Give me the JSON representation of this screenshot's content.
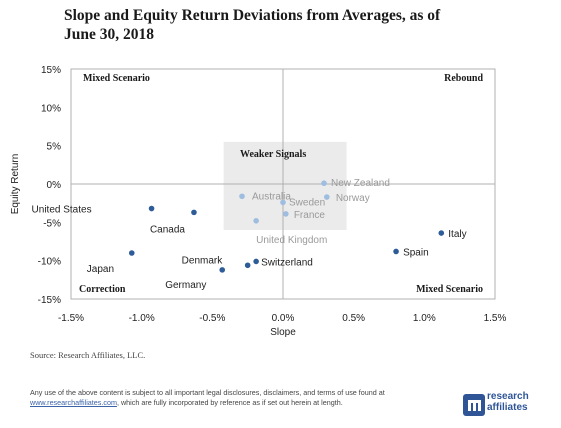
{
  "title_line1": "Slope and Equity Return Deviations from Averages, as of",
  "title_line2": "June 30, 2018",
  "source": "Source: Research Affiliates, LLC.",
  "disclaimer_line1": "Any use of the above content is subject to all important legal disclosures, disclaimers, and terms of use found at",
  "disclaimer_link": "www.researchaffiliates.com",
  "disclaimer_line2_rest": ", which are fully incorporated by reference as if set out herein at length.",
  "logo_line1": "research",
  "logo_line2": "affiliates",
  "colors": {
    "dark_dot": "#2e5c99",
    "light_dot": "#9fbde0",
    "weak_box": "#ebebeb",
    "axis": "#b0b0b0"
  },
  "chart_data": {
    "type": "scatter",
    "title": "Slope and Equity Return Deviations from Averages, as of June 30, 2018",
    "xlabel": "Slope",
    "ylabel": "Equity Return",
    "xlim": [
      -1.5,
      1.5
    ],
    "ylim": [
      -15,
      15
    ],
    "xticks": [
      "-1.5%",
      "-1.0%",
      "-0.5%",
      "0.0%",
      "0.5%",
      "1.0%",
      "1.5%"
    ],
    "yticks": [
      "15%",
      "10%",
      "5%",
      "0%",
      "-5%",
      "-10%",
      "-15%"
    ],
    "quadrant_labels": [
      "Mixed Scenario",
      "Rebound",
      "Correction",
      "Mixed Scenario"
    ],
    "weak_region_label": "Weaker Signals",
    "weak_region": {
      "x": [
        -0.42,
        0.45
      ],
      "y": [
        -6,
        5.5
      ]
    },
    "points": [
      {
        "label": "United States",
        "x": -0.93,
        "y": -3.2,
        "weak": false
      },
      {
        "label": "Canada",
        "x": -0.63,
        "y": -3.7,
        "weak": false
      },
      {
        "label": "Japan",
        "x": -1.07,
        "y": -9.0,
        "weak": false
      },
      {
        "label": "Germany",
        "x": -0.43,
        "y": -11.2,
        "weak": false
      },
      {
        "label": "Denmark",
        "x": -0.25,
        "y": -10.6,
        "weak": false
      },
      {
        "label": "Switzerland",
        "x": -0.19,
        "y": -10.1,
        "weak": false
      },
      {
        "label": "Spain",
        "x": 0.8,
        "y": -8.8,
        "weak": false
      },
      {
        "label": "Italy",
        "x": 1.12,
        "y": -6.4,
        "weak": false
      },
      {
        "label": "Australia",
        "x": -0.29,
        "y": -1.6,
        "weak": true
      },
      {
        "label": "Sweden",
        "x": 0.0,
        "y": -2.4,
        "weak": true
      },
      {
        "label": "New Zealand",
        "x": 0.29,
        "y": 0.1,
        "weak": true
      },
      {
        "label": "Norway",
        "x": 0.31,
        "y": -1.7,
        "weak": true
      },
      {
        "label": "France",
        "x": 0.02,
        "y": -3.9,
        "weak": true
      },
      {
        "label": "United Kingdom",
        "x": -0.19,
        "y": -4.8,
        "weak": true
      }
    ]
  }
}
